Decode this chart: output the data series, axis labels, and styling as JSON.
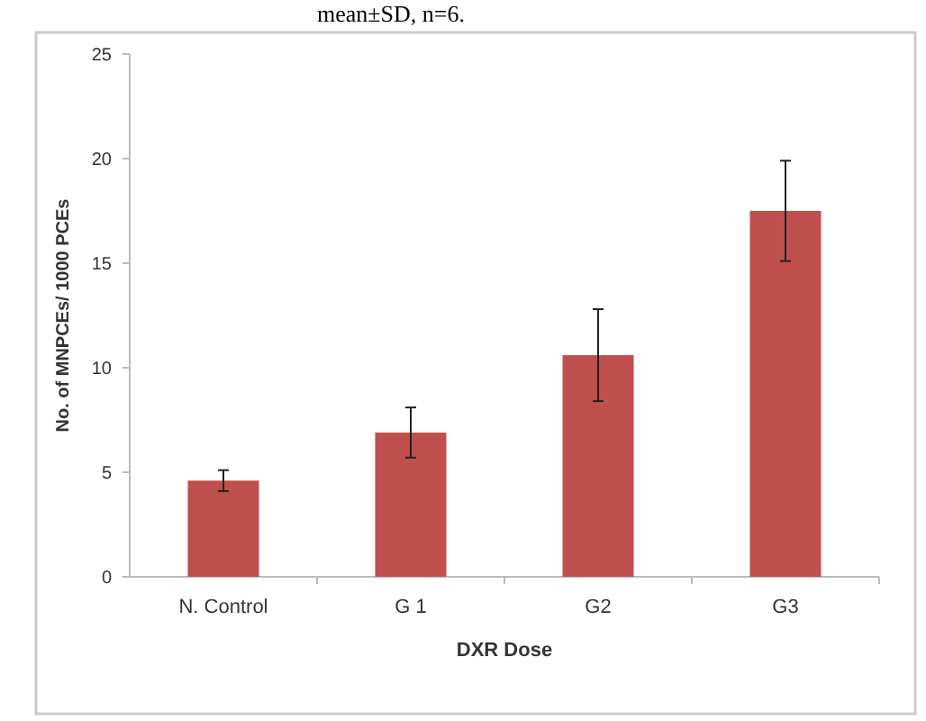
{
  "chart_data": {
    "type": "bar",
    "xlabel": "DXR Dose",
    "ylabel": "No. of MNPCEs/ 1000 PCEs",
    "annotations": [
      "mean±SD, n=6."
    ],
    "categories": [
      "N. Control",
      "G 1",
      "G2",
      "G3"
    ],
    "values": [
      4.6,
      6.9,
      10.6,
      17.5
    ],
    "errors": [
      0.5,
      1.2,
      2.2,
      2.4
    ],
    "color": "#c0504d",
    "ylim": [
      0,
      25
    ],
    "yticks": [
      0,
      5,
      10,
      15,
      20,
      25
    ],
    "grid": false
  }
}
